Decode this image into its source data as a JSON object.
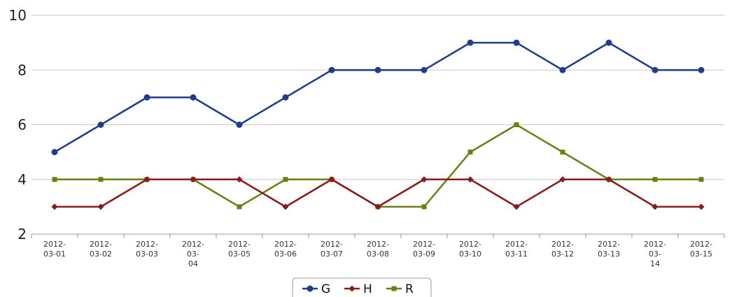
{
  "chart_data": {
    "type": "line",
    "categories": [
      "2012-03-01",
      "2012-03-02",
      "2012-03-03",
      "2012-03-04",
      "2012-03-05",
      "2012-03-06",
      "2012-03-07",
      "2012-03-08",
      "2012-03-09",
      "2012-03-10",
      "2012-03-11",
      "2012-03-12",
      "2012-03-13",
      "2012-03-14",
      "2012-03-15"
    ],
    "category_label_lines": [
      [
        "2012-",
        "03-01"
      ],
      [
        "2012-",
        "03-02"
      ],
      [
        "2012-",
        "03-03"
      ],
      [
        "2012-",
        "03-",
        "04"
      ],
      [
        "2012-",
        "03-05"
      ],
      [
        "2012-",
        "03-06"
      ],
      [
        "2012-",
        "03-07"
      ],
      [
        "2012-",
        "03-08"
      ],
      [
        "2012-",
        "03-09"
      ],
      [
        "2012-",
        "03-10"
      ],
      [
        "2012-",
        "03-11"
      ],
      [
        "2012-",
        "03-12"
      ],
      [
        "2012-",
        "03-13"
      ],
      [
        "2012-",
        "03-",
        "14"
      ],
      [
        "2012-",
        "03-15"
      ]
    ],
    "series": [
      {
        "name": "G",
        "color": "#1f3d8f",
        "marker": "circle",
        "values": [
          5,
          6,
          7,
          7,
          6,
          7,
          8,
          8,
          8,
          9,
          9,
          8,
          9,
          8,
          8
        ]
      },
      {
        "name": "H",
        "color": "#8b1a1a",
        "marker": "diamond",
        "values": [
          3,
          3,
          4,
          4,
          4,
          3,
          4,
          3,
          4,
          4,
          3,
          4,
          4,
          3,
          3
        ]
      },
      {
        "name": "R",
        "color": "#6b7f12",
        "marker": "square",
        "values": [
          4,
          4,
          4,
          4,
          3,
          4,
          4,
          3,
          3,
          5,
          6,
          5,
          4,
          4,
          4
        ]
      }
    ],
    "ylim": [
      2,
      10
    ],
    "yticks": [
      2,
      4,
      6,
      8,
      10
    ],
    "title": "",
    "xlabel": "",
    "ylabel": "",
    "grid": true,
    "legend_position": "bottom-center"
  }
}
